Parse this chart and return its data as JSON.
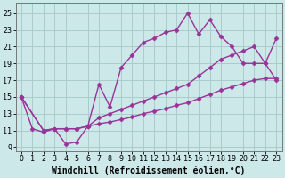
{
  "bg_color": "#cce8e8",
  "grid_color": "#aacccc",
  "line_color": "#993399",
  "marker": "D",
  "markersize": 2.5,
  "linewidth": 1.0,
  "xlabel": "Windchill (Refroidissement éolien,°C)",
  "xlabel_fontsize": 7.0,
  "tick_fontsize": 6.0,
  "xlim": [
    -0.5,
    23.5
  ],
  "ylim": [
    8.5,
    26.2
  ],
  "xticks": [
    0,
    1,
    2,
    3,
    4,
    5,
    6,
    7,
    8,
    9,
    10,
    11,
    12,
    13,
    14,
    15,
    16,
    17,
    18,
    19,
    20,
    21,
    22,
    23
  ],
  "yticks": [
    9,
    11,
    13,
    15,
    17,
    19,
    21,
    23,
    25
  ],
  "line1_x": [
    0,
    1,
    2,
    3,
    4,
    5,
    6,
    7,
    8,
    9,
    10,
    11,
    12,
    13,
    14,
    15,
    16,
    17,
    18,
    19,
    20,
    21,
    22,
    23
  ],
  "line1_y": [
    15.0,
    11.2,
    10.8,
    11.2,
    9.4,
    9.6,
    11.5,
    16.5,
    13.8,
    18.5,
    20.0,
    21.5,
    22.0,
    22.7,
    23.0,
    25.0,
    22.5,
    24.2,
    22.2,
    21.0,
    19.0,
    19.0,
    19.0,
    17.0
  ],
  "line2_x": [
    0,
    2,
    3,
    4,
    5,
    6,
    7,
    8,
    9,
    10,
    11,
    12,
    13,
    14,
    15,
    16,
    17,
    18,
    19,
    20,
    21,
    22,
    23
  ],
  "line2_y": [
    15.0,
    11.0,
    11.2,
    11.2,
    11.2,
    11.5,
    12.5,
    13.0,
    13.5,
    14.0,
    14.5,
    15.0,
    15.5,
    16.0,
    16.5,
    17.5,
    18.5,
    19.5,
    20.0,
    20.5,
    21.0,
    19.0,
    22.0
  ],
  "line3_x": [
    0,
    2,
    3,
    4,
    5,
    6,
    7,
    8,
    9,
    10,
    11,
    12,
    13,
    14,
    15,
    16,
    17,
    18,
    19,
    20,
    21,
    22,
    23
  ],
  "line3_y": [
    15.0,
    11.0,
    11.2,
    11.2,
    11.2,
    11.5,
    11.8,
    12.0,
    12.3,
    12.6,
    13.0,
    13.3,
    13.6,
    14.0,
    14.3,
    14.8,
    15.3,
    15.8,
    16.2,
    16.6,
    17.0,
    17.2,
    17.2
  ]
}
